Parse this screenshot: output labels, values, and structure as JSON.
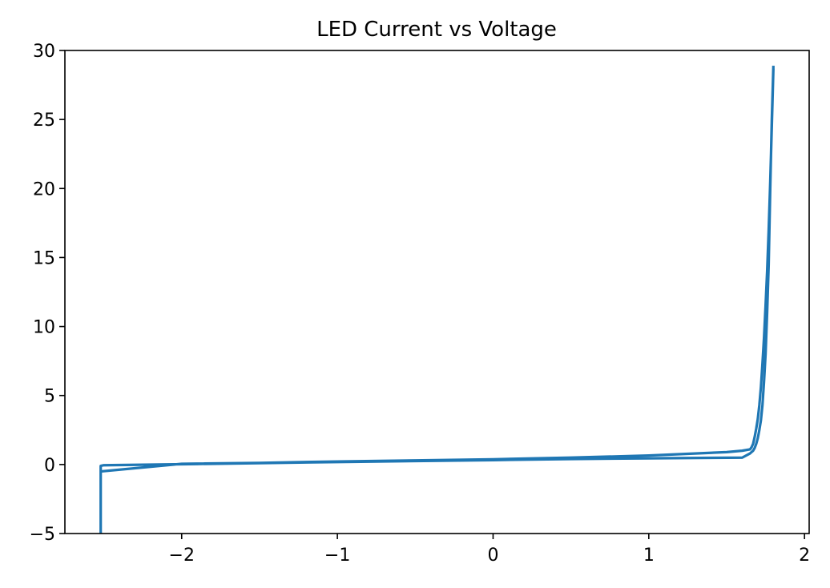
{
  "chart_data": {
    "type": "line",
    "title": "LED Current vs Voltage",
    "xlabel": "",
    "ylabel": "",
    "xlim": [
      -2.75,
      2.03
    ],
    "ylim": [
      -5,
      30
    ],
    "x_ticks": [
      -2,
      -1,
      0,
      1,
      2
    ],
    "x_tick_labels": [
      "−2",
      "−1",
      "0",
      "1",
      "2"
    ],
    "y_ticks": [
      -5,
      0,
      5,
      10,
      15,
      20,
      25,
      30
    ],
    "y_tick_labels": [
      "−5",
      "0",
      "5",
      "10",
      "15",
      "20",
      "25",
      "30"
    ],
    "grid": false,
    "series": [
      {
        "color": "#1f77b4",
        "x": [
          1.8,
          1.79,
          1.78,
          1.77,
          1.76,
          1.75,
          1.74,
          1.73,
          1.72,
          1.71,
          1.7,
          1.69,
          1.68,
          1.67,
          1.66,
          1.65,
          1.6,
          1.0,
          0.5,
          0.0,
          -0.5,
          -1.0,
          -1.5,
          -2.0,
          -2.5,
          -2.52,
          -2.52,
          -2.52,
          -2.52,
          -2.0,
          -1.5,
          -1.0,
          -0.5,
          0.0,
          0.5,
          1.0,
          1.5,
          1.6,
          1.65,
          1.66,
          1.67,
          1.68,
          1.69,
          1.7,
          1.71,
          1.72,
          1.73,
          1.74,
          1.75,
          1.76,
          1.77,
          1.78,
          1.79,
          1.8
        ],
        "y": [
          28.8,
          25.0,
          20.0,
          14.5,
          11.0,
          8.0,
          6.0,
          4.3,
          3.2,
          2.5,
          1.9,
          1.5,
          1.2,
          1.0,
          0.9,
          0.8,
          0.5,
          0.45,
          0.4,
          0.32,
          0.25,
          0.18,
          0.1,
          0.02,
          -0.05,
          -0.1,
          -5.0,
          -0.3,
          -0.5,
          0.05,
          0.12,
          0.22,
          0.3,
          0.38,
          0.5,
          0.65,
          0.9,
          1.0,
          1.1,
          1.25,
          1.5,
          2.0,
          2.6,
          3.3,
          4.3,
          5.6,
          7.3,
          9.2,
          11.5,
          14.0,
          17.0,
          20.5,
          24.5,
          28.6
        ]
      }
    ]
  }
}
